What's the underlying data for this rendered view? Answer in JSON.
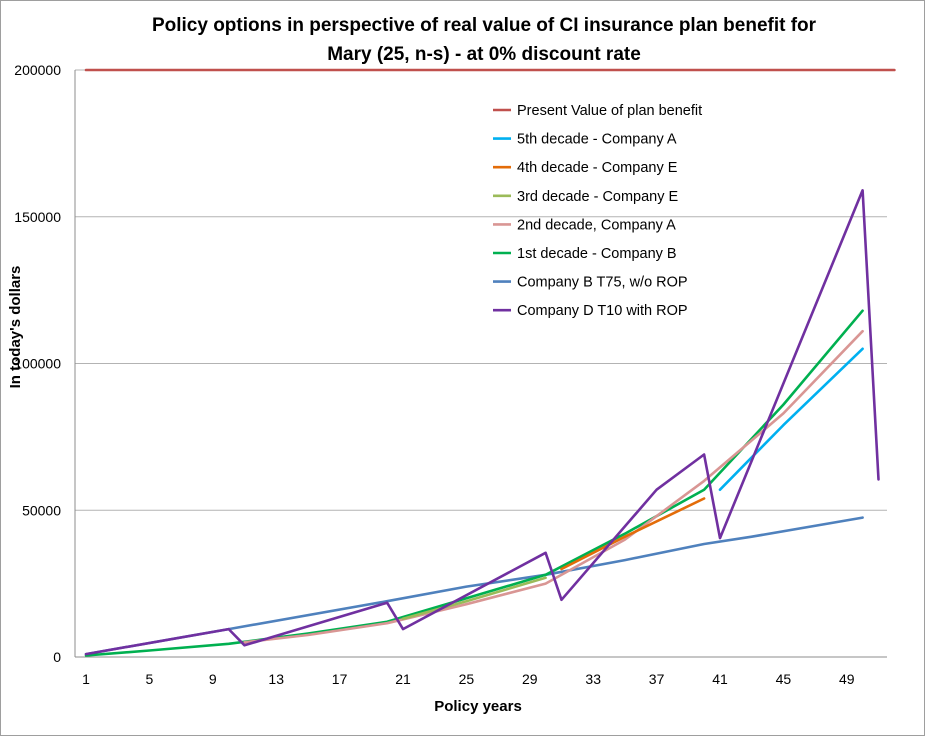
{
  "chart_data": {
    "type": "line",
    "title": "Policy options in perspective of real value of CI insurance plan benefit for Mary (25, n-s) - at 0% discount rate",
    "title_lines": [
      "Policy options in perspective of real value of CI insurance plan benefit for",
      "Mary (25, n-s) - at 0% discount rate"
    ],
    "xlabel": "Policy years",
    "ylabel": "In today's dollars",
    "xlim": [
      1,
      52
    ],
    "ylim": [
      0,
      200000
    ],
    "x_ticks": [
      1,
      5,
      9,
      13,
      17,
      21,
      25,
      29,
      33,
      37,
      41,
      45,
      49
    ],
    "y_ticks": [
      0,
      50000,
      100000,
      150000,
      200000
    ],
    "grid": "horizontal",
    "legend_position": "top-right",
    "series": [
      {
        "name": "Present Value of plan benefit",
        "color": "#c0504d",
        "x": [
          1,
          52
        ],
        "y": [
          200000,
          200000
        ]
      },
      {
        "name": "5th decade - Company A",
        "color": "#00b0f0",
        "x": [
          41,
          45,
          50
        ],
        "y": [
          57000,
          79000,
          105000
        ]
      },
      {
        "name": "4th decade - Company E",
        "color": "#e36c09",
        "x": [
          31,
          35,
          40
        ],
        "y": [
          30000,
          41000,
          54000
        ]
      },
      {
        "name": "3rd decade - Company E",
        "color": "#9bbb59",
        "x": [
          21,
          25,
          30
        ],
        "y": [
          13000,
          19000,
          27000
        ]
      },
      {
        "name": "2nd decade, Company A",
        "color": "#d99694",
        "x": [
          11,
          15,
          20,
          25,
          30,
          35,
          40,
          45,
          50
        ],
        "y": [
          5000,
          7500,
          11500,
          18000,
          25000,
          40000,
          60000,
          83000,
          111000
        ]
      },
      {
        "name": "1st decade - Company B",
        "color": "#00b050",
        "x": [
          1,
          5,
          10,
          15,
          20,
          25,
          30,
          35,
          40,
          45,
          50
        ],
        "y": [
          500,
          2200,
          4500,
          8000,
          12000,
          20000,
          28000,
          42000,
          57000,
          86000,
          118000
        ]
      },
      {
        "name": "Company B T75, w/o ROP",
        "color": "#4f81bd",
        "x": [
          1,
          10,
          20,
          25,
          30,
          35,
          40,
          43,
          50
        ],
        "y": [
          1000,
          9500,
          19000,
          24000,
          28000,
          33000,
          38500,
          41000,
          47500
        ]
      },
      {
        "name": "Company D T10 with ROP",
        "color": "#7030a0",
        "x": [
          1,
          10,
          11,
          20,
          21,
          30,
          31,
          37,
          40,
          41,
          50,
          51
        ],
        "y": [
          1000,
          9500,
          4000,
          18500,
          9500,
          35500,
          19500,
          57000,
          69000,
          40500,
          159000,
          60500
        ]
      }
    ]
  }
}
